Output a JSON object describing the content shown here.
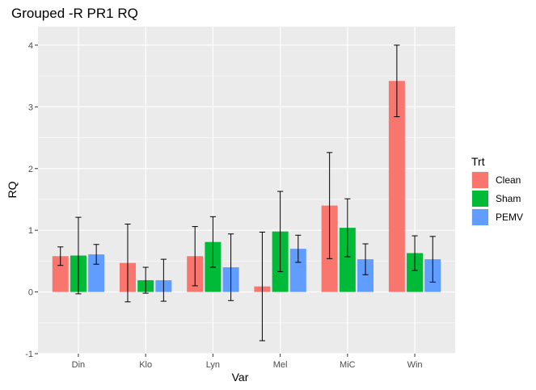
{
  "chart_data": {
    "type": "bar",
    "title": "Grouped -R PR1 RQ",
    "xlabel": "Var",
    "ylabel": "RQ",
    "categories": [
      "Din",
      "Klo",
      "Lyn",
      "Mel",
      "MiC",
      "Win"
    ],
    "ylim": [
      -1,
      4.3
    ],
    "yticks": [
      -1,
      0,
      1,
      2,
      3,
      4
    ],
    "grid": true,
    "legend": {
      "title": "Trt",
      "position": "right"
    },
    "series": [
      {
        "name": "Clean",
        "color": "#F8766D",
        "values": [
          0.58,
          0.47,
          0.58,
          0.09,
          1.4,
          3.42
        ],
        "error": [
          0.15,
          0.63,
          0.48,
          0.88,
          0.86,
          0.58
        ]
      },
      {
        "name": "Sham",
        "color": "#00BA38",
        "values": [
          0.59,
          0.19,
          0.81,
          0.98,
          1.04,
          0.63
        ],
        "error": [
          0.62,
          0.21,
          0.41,
          0.65,
          0.47,
          0.28
        ]
      },
      {
        "name": "PEMV",
        "color": "#619CFF",
        "values": [
          0.61,
          0.19,
          0.4,
          0.7,
          0.53,
          0.53
        ],
        "error": [
          0.16,
          0.34,
          0.54,
          0.22,
          0.25,
          0.37
        ]
      }
    ]
  }
}
